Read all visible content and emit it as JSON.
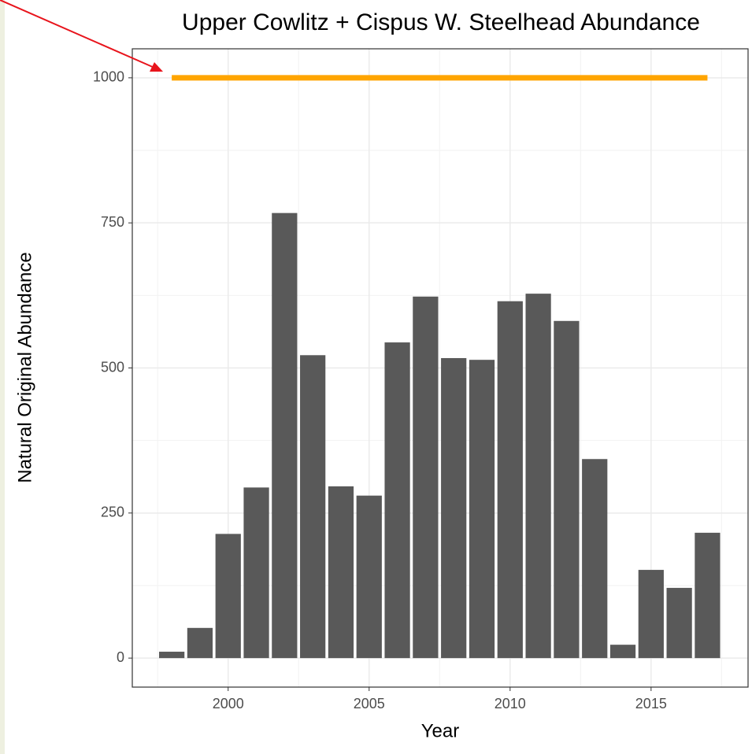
{
  "chart_data": {
    "type": "bar",
    "title": "Upper Cowlitz + Cispus W. Steelhead Abundance",
    "x_label": "Year",
    "y_label": "Natural Original Abundance",
    "x": [
      1998,
      1999,
      2000,
      2001,
      2002,
      2003,
      2004,
      2005,
      2006,
      2007,
      2008,
      2009,
      2010,
      2011,
      2012,
      2013,
      2014,
      2015,
      2016,
      2017
    ],
    "values": [
      11,
      52,
      214,
      294,
      767,
      522,
      296,
      280,
      544,
      623,
      517,
      514,
      615,
      628,
      581,
      343,
      23,
      152,
      121,
      216
    ],
    "color": "#595959",
    "target": {
      "x": [
        1998,
        2017
      ],
      "values": [
        1000,
        1000
      ],
      "color": "#ffa500"
    },
    "xlim": [
      1996.6,
      2018.44
    ],
    "ylim": [
      -50,
      1050
    ],
    "xticks": [
      2000,
      2005,
      2010,
      2015
    ],
    "yticks": [
      0,
      250,
      500,
      750,
      1000
    ],
    "grid": true
  }
}
